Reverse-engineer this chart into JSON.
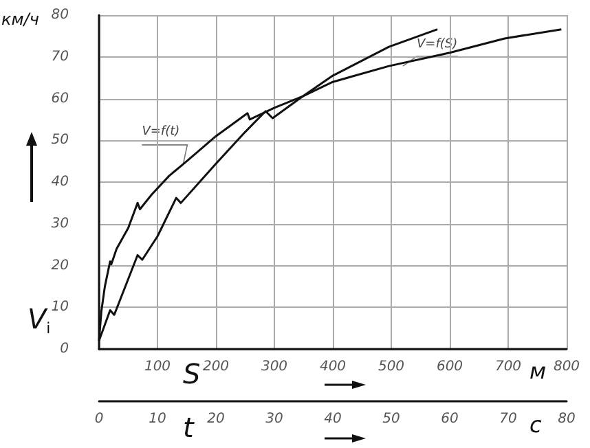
{
  "chart_data": {
    "type": "line",
    "xlabel": "S",
    "ylabel": "V$_{i}$",
    "x2label": "t",
    "xlim": [
      0,
      800
    ],
    "xticks": [
      {
        "value": 0,
        "label": null
      },
      100,
      200,
      300,
      400,
      500,
      600,
      700,
      800
    ],
    "x2lim": [
      0,
      80
    ],
    "x2ticks": [
      0,
      10,
      20,
      30,
      40,
      50,
      60,
      70,
      80
    ],
    "ylim": [
      0,
      80
    ],
    "yticks": [
      0,
      10,
      20,
      30,
      40,
      50,
      60,
      70,
      80
    ],
    "grid": true,
    "marker": "none",
    "line_style": "solid",
    "series": [
      {
        "color": "#111111",
        "axis": "x2",
        "x": [
          0,
          0.4,
          1,
          1.9,
          2.1,
          3,
          5,
          6.6,
          7,
          9,
          12,
          15,
          20,
          25.4,
          25.8,
          30,
          34.8,
          40,
          49.6,
          60,
          69.4,
          79.1
        ],
        "values": [
          2,
          9,
          15,
          21,
          20.3,
          24,
          29,
          35,
          33.5,
          37,
          41.5,
          45,
          51,
          56.5,
          55,
          57.8,
          60.5,
          64,
          67.8,
          71,
          74.4,
          76.6
        ]
      },
      {
        "color": "#111111",
        "x": [
          0,
          19,
          26,
          66,
          74,
          100,
          132,
          140,
          200,
          250,
          285,
          297,
          348,
          400,
          496,
          579
        ],
        "values": [
          2,
          9.3,
          8.2,
          22.5,
          21.4,
          27,
          36.2,
          35,
          44.4,
          52,
          57,
          55.3,
          60.5,
          65.5,
          72.4,
          76.6
        ]
      }
    ],
    "annotations": [
      {
        "text": "V=f(t)",
        "x": 144,
        "y": 44.3
      },
      {
        "text": "V=f(S)",
        "x": 520,
        "y": 67.8
      },
      "км/ч",
      "м",
      "с"
    ]
  }
}
